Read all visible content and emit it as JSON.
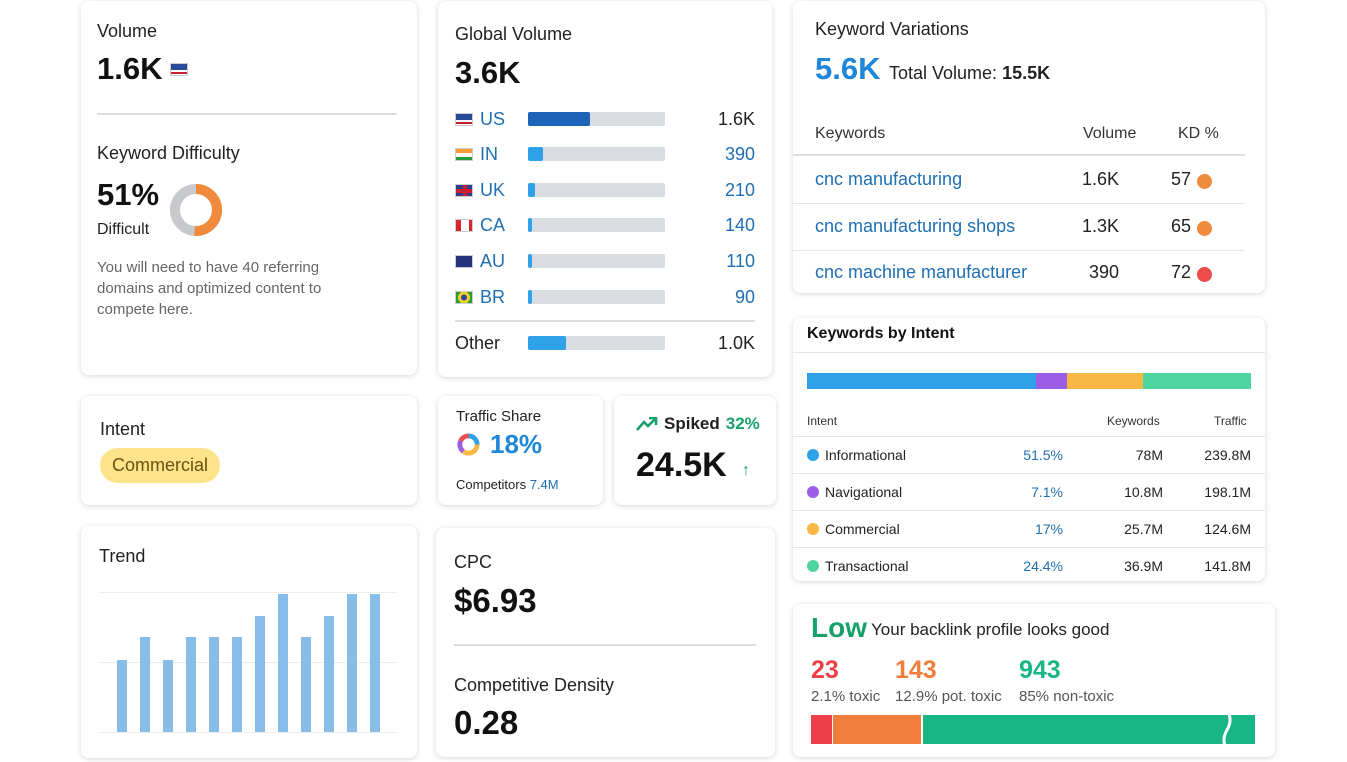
{
  "volume": {
    "title": "Volume",
    "value": "1.6K",
    "flag": "us-flag-icon"
  },
  "keyword_difficulty": {
    "title": "Keyword Difficulty",
    "value": "51%",
    "level": "Difficult",
    "percent": 51,
    "description": "You will need to have 40 referring domains and optimized content to compete here."
  },
  "global_volume": {
    "title": "Global Volume",
    "value": "3.6K",
    "countries": [
      {
        "code": "US",
        "value": "1.6K",
        "share": 0.45
      },
      {
        "code": "IN",
        "value": "390",
        "share": 0.11
      },
      {
        "code": "UK",
        "value": "210",
        "share": 0.05
      },
      {
        "code": "CA",
        "value": "140",
        "share": 0.03
      },
      {
        "code": "AU",
        "value": "110",
        "share": 0.02
      },
      {
        "code": "BR",
        "value": "90",
        "share": 0.02
      }
    ],
    "other": {
      "label": "Other",
      "value": "1.0K",
      "share": 0.28
    }
  },
  "keyword_variations": {
    "title": "Keyword Variations",
    "value": "5.6K",
    "total_label": "Total Volume:",
    "total_value": "15.5K",
    "headers": {
      "keywords": "Keywords",
      "volume": "Volume",
      "kd": "KD %"
    },
    "rows": [
      {
        "keyword": "cnc manufacturing",
        "volume": "1.6K",
        "kd": "57",
        "color": "#f08a3c"
      },
      {
        "keyword": "cnc manufacturing shops",
        "volume": "1.3K",
        "kd": "65",
        "color": "#f08a3c"
      },
      {
        "keyword": "cnc machine manufacturer",
        "volume": "390",
        "kd": "72",
        "color": "#ee4b4b"
      }
    ]
  },
  "keywords_by_intent": {
    "title": "Keywords by Intent",
    "headers": {
      "intent": "Intent",
      "keywords": "Keywords",
      "traffic": "Traffic"
    },
    "rows": [
      {
        "name": "Informational",
        "percent": "51.5%",
        "share": 51.5,
        "keywords": "78M",
        "traffic": "239.8M",
        "color": "#2fa1e8"
      },
      {
        "name": "Navigational",
        "percent": "7.1%",
        "share": 7.1,
        "keywords": "10.8M",
        "traffic": "198.1M",
        "color": "#9b5de5"
      },
      {
        "name": "Commercial",
        "percent": "17%",
        "share": 17,
        "keywords": "25.7M",
        "traffic": "124.6M",
        "color": "#f7b844"
      },
      {
        "name": "Transactional",
        "percent": "24.4%",
        "share": 24.4,
        "keywords": "36.9M",
        "traffic": "141.8M",
        "color": "#4fd6a0"
      }
    ]
  },
  "intent": {
    "title": "Intent",
    "value": "Commercial"
  },
  "traffic_share": {
    "title": "Traffic Share",
    "value": "18%",
    "competitors_label": "Competitors",
    "competitors_value": "7.4M"
  },
  "spiked": {
    "label": "Spiked",
    "percent": "32%",
    "value": "24.5K",
    "arrow": "↑"
  },
  "trend": {
    "title": "Trend",
    "values": [
      0.52,
      0.69,
      0.52,
      0.69,
      0.69,
      0.69,
      0.84,
      1.0,
      0.69,
      0.84,
      1.0,
      1.0
    ]
  },
  "cpc": {
    "title": "CPC",
    "value": "$6.93",
    "density_title": "Competitive Density",
    "density_value": "0.28"
  },
  "backlinks": {
    "status": "Low",
    "message": "Your backlink profile looks good",
    "toxic": {
      "value": "23",
      "label": "2.1% toxic",
      "color": "#ee3e4a"
    },
    "pot_toxic": {
      "value": "143",
      "label": "12.9% pot. toxic",
      "color": "#f07d3a"
    },
    "non_toxic": {
      "value": "943",
      "label": "85% non-toxic",
      "color": "#17b684"
    }
  }
}
